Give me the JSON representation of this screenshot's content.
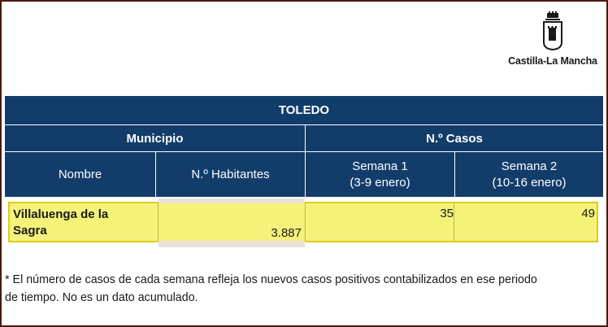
{
  "logo": {
    "text": "Castilla-La Mancha",
    "icon": "castilla-la-mancha-emblem-icon"
  },
  "table": {
    "province": "TOLEDO",
    "group_municipio": "Municipio",
    "group_casos": "N.º Casos",
    "col_nombre": "Nombre",
    "col_habitantes": "N.º Habitantes",
    "col_semana1_title": "Semana 1",
    "col_semana1_range": "(3-9 enero)",
    "col_semana2_title": "Semana 2",
    "col_semana2_range": "(10-16 enero)",
    "rows": [
      {
        "nombre_line1": "Villaluenga de la",
        "nombre_line2": "Sagra",
        "habitantes": "3.887",
        "semana1": "35",
        "semana2": "49"
      }
    ]
  },
  "footnote_line1": "* El número de casos de cada semana refleja los nuevos casos positivos contabilizados en ese periodo",
  "footnote_line2": "de tiempo. No es un dato acumulado.",
  "colors": {
    "header_bg": "#123d6b",
    "highlight_row": "#f5f27a",
    "border": "#4a1a10"
  }
}
